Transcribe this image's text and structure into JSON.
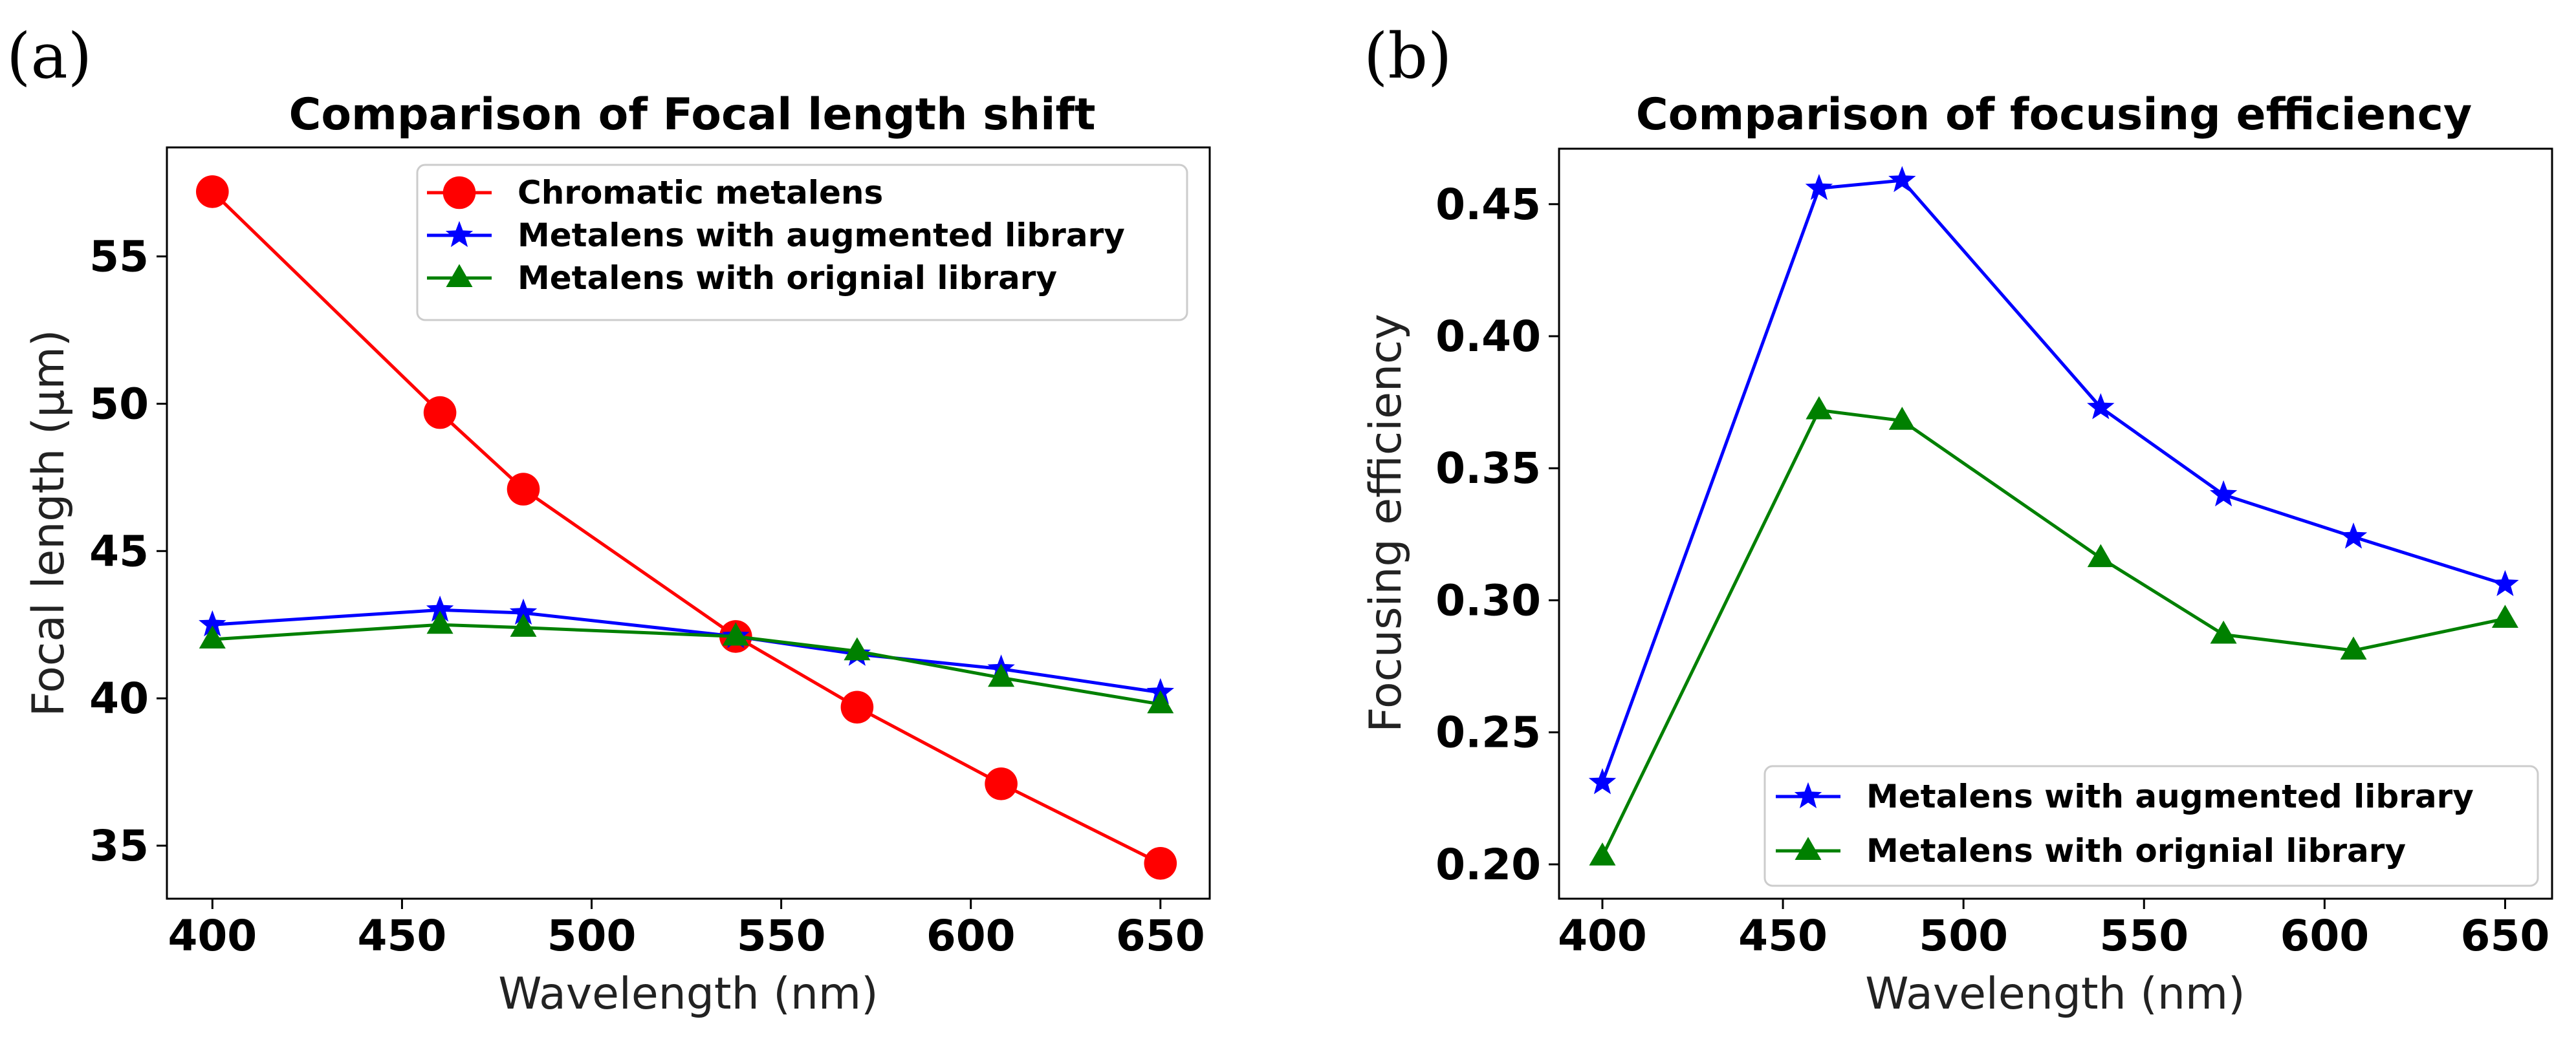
{
  "chart_data": [
    {
      "panel_label": "(a)",
      "type": "line",
      "title": "Comparison of Focal length shift",
      "xlabel": "Wavelength (nm)",
      "ylabel": "Focal length (μm)",
      "x": [
        400,
        460,
        482,
        538,
        570,
        608,
        650
      ],
      "xlim": [
        388,
        663
      ],
      "ylim": [
        33.2,
        58.7
      ],
      "xticks": [
        400,
        450,
        500,
        550,
        600,
        650
      ],
      "yticks": [
        35,
        40,
        45,
        50,
        55
      ],
      "legend_position": "upper-right",
      "series": [
        {
          "name": "Chromatic metalens",
          "color": "#ff0000",
          "marker": "circle",
          "values": [
            57.2,
            49.7,
            47.1,
            42.1,
            39.7,
            37.1,
            34.4
          ]
        },
        {
          "name": "Metalens with augmented library",
          "color": "#0000ff",
          "marker": "star",
          "values": [
            42.5,
            43.0,
            42.9,
            42.1,
            41.5,
            41.0,
            40.2
          ]
        },
        {
          "name": "Metalens with orignial library",
          "color": "#008000",
          "marker": "triangle",
          "values": [
            42.0,
            42.5,
            42.4,
            42.1,
            41.6,
            40.7,
            39.8
          ]
        }
      ]
    },
    {
      "panel_label": "(b)",
      "type": "line",
      "title": "Comparison of focusing efficiency",
      "xlabel": "Wavelength (nm)",
      "ylabel": "Focusing efficiency",
      "x": [
        400,
        460,
        483,
        538,
        572,
        608,
        650
      ],
      "xlim": [
        388,
        663
      ],
      "ylim": [
        0.187,
        0.471
      ],
      "xticks": [
        400,
        450,
        500,
        550,
        600,
        650
      ],
      "yticks": [
        0.2,
        0.25,
        0.3,
        0.35,
        0.4,
        0.45
      ],
      "legend_position": "lower-right",
      "series": [
        {
          "name": "Metalens with augmented library",
          "color": "#0000ff",
          "marker": "star",
          "values": [
            0.231,
            0.456,
            0.459,
            0.373,
            0.34,
            0.324,
            0.306
          ]
        },
        {
          "name": "Metalens with orignial library",
          "color": "#008000",
          "marker": "triangle",
          "values": [
            0.203,
            0.372,
            0.368,
            0.316,
            0.287,
            0.281,
            0.293
          ]
        }
      ]
    }
  ]
}
